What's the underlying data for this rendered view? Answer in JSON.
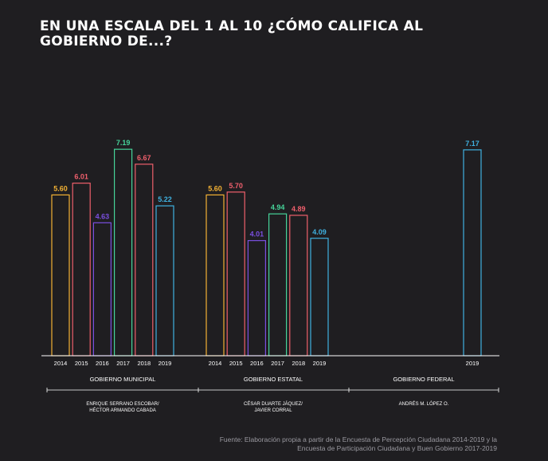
{
  "title": "EN UNA ESCALA DEL 1 AL 10 ¿CÓMO CALIFICA AL GOBIERNO DE...?",
  "source": {
    "line1": "Fuente: Elaboración propia a partir de la Encuesta de Percepción Ciudadana 2014-2019 y la",
    "line2": "Encuesta de Participación Ciudadana y Buen Gobierno 2017-2019"
  },
  "colors": {
    "2014": "#f2b134",
    "2015": "#ef5f6c",
    "2016": "#7a4fe0",
    "2017": "#46d49a",
    "2018": "#ef5f6c",
    "2019": "#3fb1e0",
    "axis": "#ffffff",
    "background": "#1f1e21"
  },
  "chart_data": {
    "type": "bar",
    "title": "EN UNA ESCALA DEL 1 AL 10 ¿CÓMO CALIFICA AL GOBIERNO DE...?",
    "ylim": [
      0,
      10
    ],
    "grid": false,
    "groups": [
      {
        "name": "GOBIERNO MUNICIPAL",
        "sublabel": [
          "ENRIQUE SERRANO ESCOBAR/",
          "HÉCTOR ARMANDO CABADA"
        ],
        "bars": [
          {
            "year": "2014",
            "value": 5.6,
            "label": "5.60"
          },
          {
            "year": "2015",
            "value": 6.01,
            "label": "6.01"
          },
          {
            "year": "2016",
            "value": 4.63,
            "label": "4.63"
          },
          {
            "year": "2017",
            "value": 7.19,
            "label": "7.19"
          },
          {
            "year": "2018",
            "value": 6.67,
            "label": "6.67"
          },
          {
            "year": "2019",
            "value": 5.22,
            "label": "5.22"
          }
        ]
      },
      {
        "name": "GOBIERNO ESTATAL",
        "sublabel": [
          "CÉSAR DUARTE JÁQUEZ/",
          "JAVIER CORRAL"
        ],
        "bars": [
          {
            "year": "2014",
            "value": 5.6,
            "label": "5.60"
          },
          {
            "year": "2015",
            "value": 5.7,
            "label": "5.70"
          },
          {
            "year": "2016",
            "value": 4.01,
            "label": "4.01"
          },
          {
            "year": "2017",
            "value": 4.94,
            "label": "4.94"
          },
          {
            "year": "2018",
            "value": 4.89,
            "label": "4.89"
          },
          {
            "year": "2019",
            "value": 4.09,
            "label": "4.09"
          }
        ]
      },
      {
        "name": "GOBIERNO FEDERAL",
        "sublabel": [
          "ANDRÉS M. LÓPEZ O."
        ],
        "bars": [
          {
            "year": "2019",
            "value": 7.17,
            "label": "7.17"
          }
        ]
      }
    ]
  }
}
